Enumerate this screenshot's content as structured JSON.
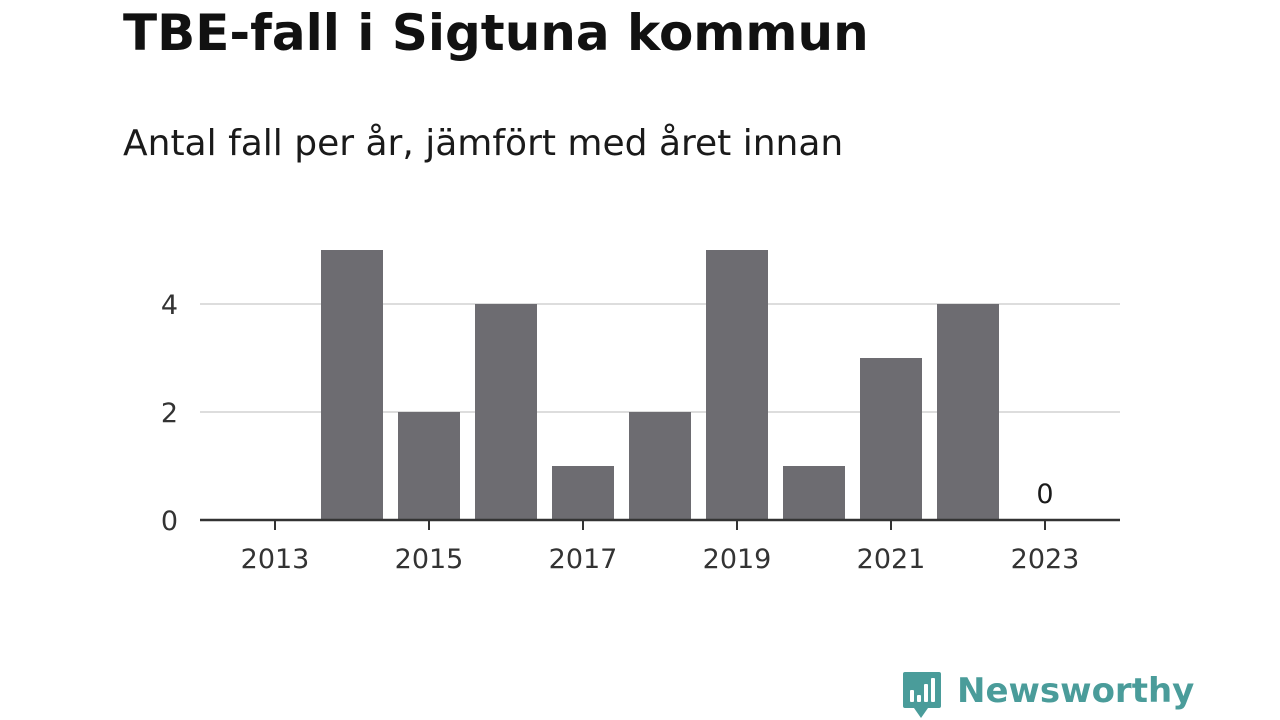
{
  "header": {
    "title": "TBE-fall i Sigtuna kommun",
    "subtitle": "Antal fall per år, jämfört med året innan"
  },
  "brand": {
    "name": "Newsworthy",
    "icon": "newsworthy-logo-icon",
    "color": "#4a9c9a"
  },
  "colors": {
    "bar": "#6d6c71",
    "grid": "#dddddd",
    "axis": "#333333"
  },
  "chart_data": {
    "type": "bar",
    "categories": [
      2013,
      2014,
      2015,
      2016,
      2017,
      2018,
      2019,
      2020,
      2021,
      2022,
      2023
    ],
    "values": [
      0,
      5,
      2,
      4,
      1,
      2,
      5,
      1,
      3,
      4,
      0
    ],
    "x_tick_labels": [
      "2013",
      "2015",
      "2017",
      "2019",
      "2021",
      "2023"
    ],
    "y_ticks": [
      0,
      2,
      4
    ],
    "ylim": [
      0,
      5
    ],
    "grid": true,
    "xlabel": "",
    "ylabel": "",
    "annotations": [
      {
        "category": 2023,
        "text": "0"
      }
    ]
  }
}
